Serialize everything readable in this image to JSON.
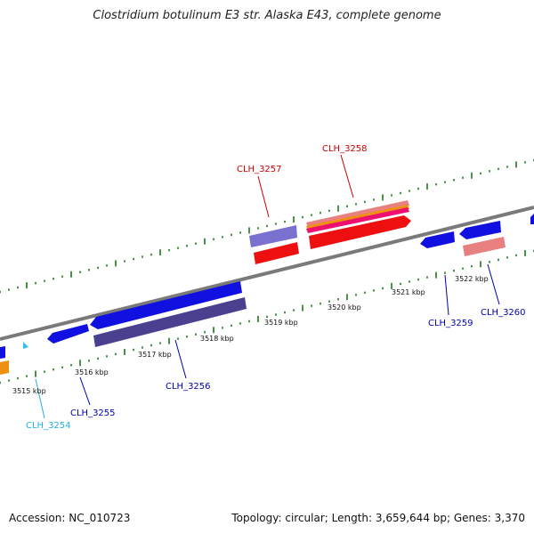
{
  "title": "Clostridium botulinum E3 str. Alaska E43, complete genome",
  "footer": {
    "accession": "Accession: NC_010723",
    "summary": "Topology: circular; Length: 3,659,644 bp; Genes: 3,370"
  },
  "colors": {
    "backbone": "#808080",
    "tick": "#1a7a1a",
    "gene_blue": "#1010e0",
    "gene_dark_purple": "#4a4090",
    "gene_light_purple": "#7a70d0",
    "gene_red": "#ee1010",
    "gene_salmon": "#e88080",
    "gene_orange": "#f09010",
    "label_red": "#cc0000",
    "label_blue": "#0000aa",
    "label_cyan": "#20b0e0"
  },
  "kbp_labels": [
    "3515 kbp",
    "3516 kbp",
    "3517 kbp",
    "3518 kbp",
    "3519 kbp",
    "3520 kbp",
    "3521 kbp",
    "3522 kbp"
  ],
  "gene_labels": {
    "clh_3254": "CLH_3254",
    "clh_3255": "CLH_3255",
    "clh_3256": "CLH_3256",
    "clh_3257": "CLH_3257",
    "clh_3258": "CLH_3258",
    "clh_3259": "CLH_3259",
    "clh_3260": "CLH_3260"
  }
}
